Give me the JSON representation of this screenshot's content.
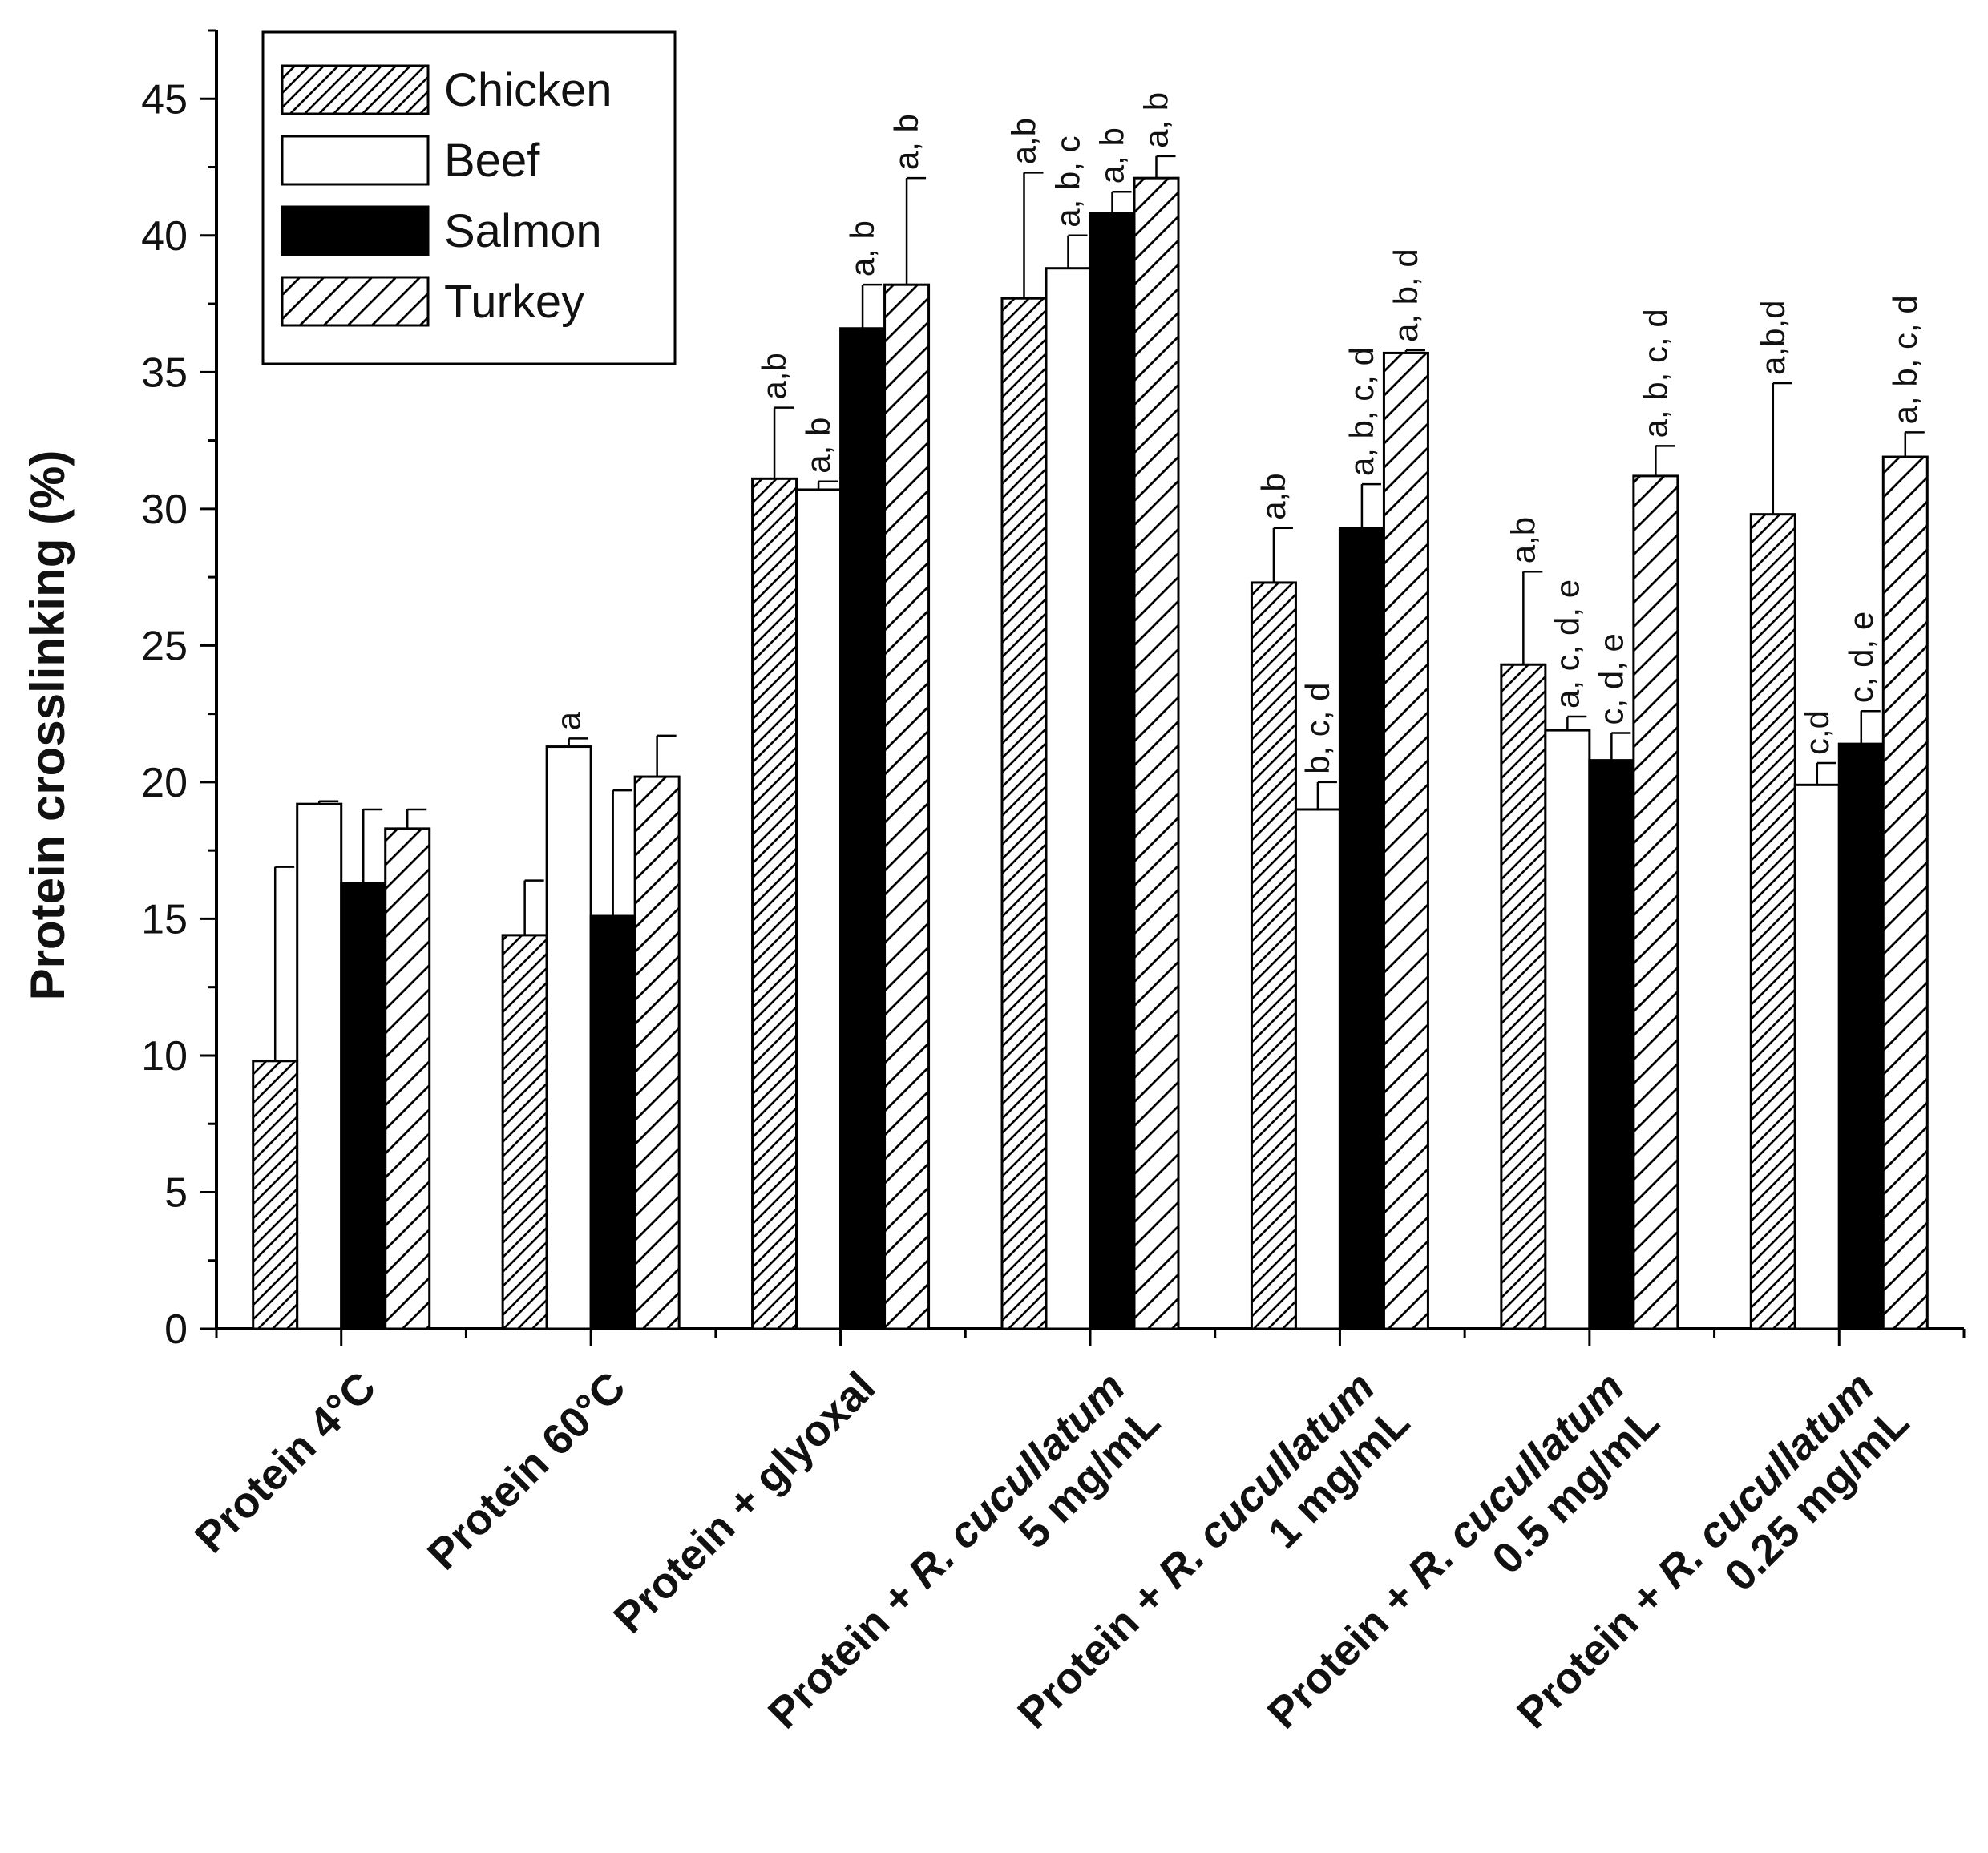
{
  "chart_data": {
    "type": "bar",
    "title": "",
    "xlabel": "",
    "ylabel": "Protein crosslinking (%)",
    "ylim": [
      0,
      47.5
    ],
    "yticks": [
      0,
      5,
      10,
      15,
      20,
      25,
      30,
      35,
      40,
      45
    ],
    "legend_position": "top-left",
    "categories": [
      {
        "lines": [
          [
            {
              "t": "Protein 4°C"
            }
          ]
        ]
      },
      {
        "lines": [
          [
            {
              "t": "Protein 60°C"
            }
          ]
        ]
      },
      {
        "lines": [
          [
            {
              "t": "Protein + glyoxal"
            }
          ]
        ]
      },
      {
        "lines": [
          [
            {
              "t": "Protein + "
            },
            {
              "t": "R. cucullatum",
              "i": true
            }
          ],
          [
            {
              "t": "5 mg/mL"
            }
          ]
        ]
      },
      {
        "lines": [
          [
            {
              "t": "Protein + "
            },
            {
              "t": "R. cucullatum",
              "i": true
            }
          ],
          [
            {
              "t": "1 mg/mL"
            }
          ]
        ]
      },
      {
        "lines": [
          [
            {
              "t": "Protein + "
            },
            {
              "t": "R. cucullatum",
              "i": true
            }
          ],
          [
            {
              "t": "0.5 mg/mL"
            }
          ]
        ]
      },
      {
        "lines": [
          [
            {
              "t": "Protein + "
            },
            {
              "t": "R. cucullatum",
              "i": true
            }
          ],
          [
            {
              "t": "0.25 mg/mL"
            }
          ]
        ]
      }
    ],
    "series": [
      {
        "name": "Chicken",
        "fill": "dense-hatch",
        "values": [
          9.8,
          14.4,
          31.1,
          37.7,
          27.3,
          24.3,
          29.8
        ],
        "errors": [
          7.1,
          2.0,
          2.6,
          4.6,
          2.0,
          3.4,
          4.8
        ],
        "labels": [
          "",
          "",
          "a,b",
          "a,b",
          "a,b",
          "a,b",
          "a,b,d"
        ]
      },
      {
        "name": "Beef",
        "fill": "white",
        "values": [
          19.2,
          21.3,
          30.7,
          38.8,
          19.0,
          21.9,
          19.9
        ],
        "errors": [
          0.1,
          0.3,
          0.3,
          1.2,
          1.0,
          0.5,
          0.8
        ],
        "labels": [
          "",
          "a",
          "a, b",
          "a, b, c",
          "b, c, d",
          "a, c, d, e",
          "c,d"
        ]
      },
      {
        "name": "Salmon",
        "fill": "black",
        "values": [
          16.3,
          15.1,
          36.6,
          40.8,
          29.3,
          20.8,
          21.4
        ],
        "errors": [
          2.7,
          4.6,
          1.6,
          0.8,
          1.6,
          1.0,
          1.2
        ],
        "labels": [
          "",
          "",
          "a, b",
          "a, b",
          "a, b, c, d",
          "c, d, e",
          "c, d, e"
        ]
      },
      {
        "name": "Turkey",
        "fill": "sparse-hatch",
        "values": [
          18.3,
          20.2,
          38.2,
          42.1,
          35.7,
          31.2,
          31.9
        ],
        "errors": [
          0.7,
          1.5,
          3.9,
          0.8,
          0.1,
          1.1,
          0.9
        ],
        "labels": [
          "",
          "",
          "a, b",
          "a, b",
          "a, b, d",
          "a, b, c, d",
          "a, b, c, d"
        ]
      }
    ]
  }
}
